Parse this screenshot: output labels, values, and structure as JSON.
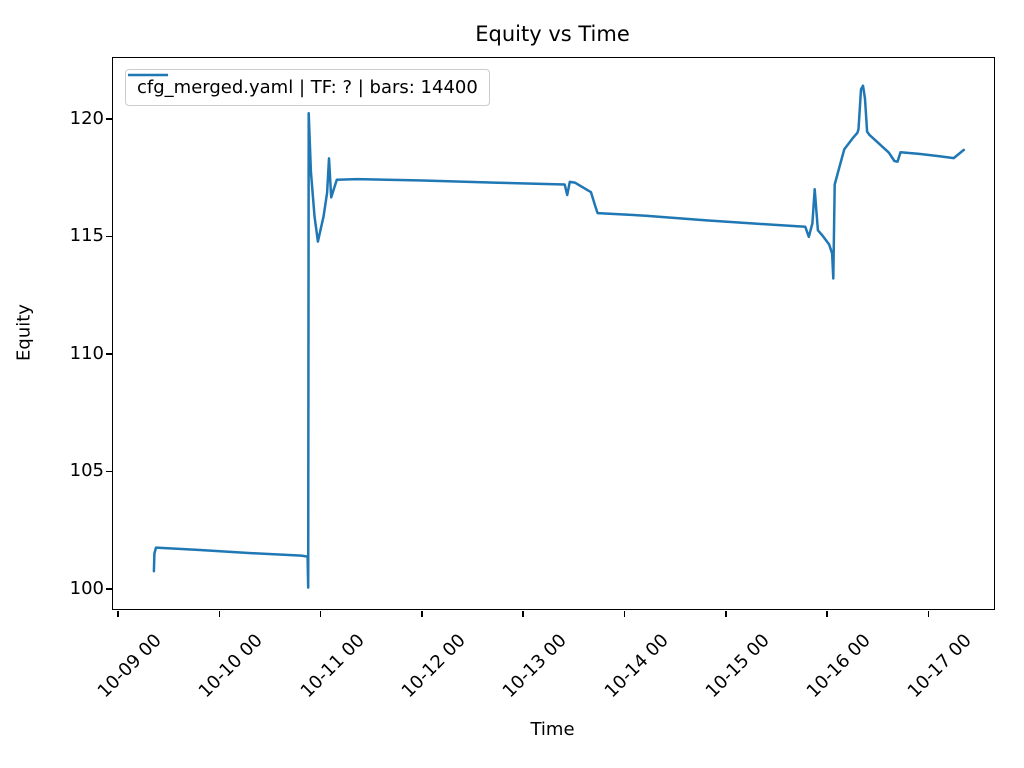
{
  "page": {
    "background": "#ffffff"
  },
  "chart_data": {
    "type": "line",
    "title": "Equity vs Time",
    "xlabel": "Time",
    "ylabel": "Equity",
    "grid": false,
    "legend": {
      "position": "upper left",
      "entries": [
        {
          "label": "cfg_merged.yaml | TF: ? | bars: 14400",
          "color": "#1f77b4"
        }
      ]
    },
    "x_axis": {
      "kind": "datetime",
      "tick_labels": [
        "10-09 00",
        "10-10 00",
        "10-11 00",
        "10-12 00",
        "10-13 00",
        "10-14 00",
        "10-15 00",
        "10-16 00",
        "10-17 00"
      ],
      "tick_positions_days": [
        0,
        1,
        2,
        3,
        4,
        5,
        6,
        7,
        8
      ],
      "lim_days": [
        -0.059,
        8.638
      ],
      "tick_rotation_deg": 45
    },
    "y_axis": {
      "tick_labels": [
        "100",
        "105",
        "110",
        "115",
        "120"
      ],
      "tick_values": [
        100,
        105,
        110,
        115,
        120
      ],
      "lim": [
        99.19,
        122.63
      ]
    },
    "series": [
      {
        "name": "cfg_merged.yaml | TF: ? | bars: 14400",
        "color": "#1f77b4",
        "line_width": 2.5,
        "points_days_equity": [
          [
            0.345,
            100.8
          ],
          [
            0.35,
            101.55
          ],
          [
            0.365,
            101.8
          ],
          [
            0.8,
            101.7
          ],
          [
            1.3,
            101.57
          ],
          [
            1.8,
            101.46
          ],
          [
            1.862,
            101.42
          ],
          [
            1.868,
            100.1
          ],
          [
            1.873,
            120.28
          ],
          [
            1.895,
            117.8
          ],
          [
            1.93,
            115.9
          ],
          [
            1.964,
            114.82
          ],
          [
            2.02,
            115.9
          ],
          [
            2.055,
            116.9
          ],
          [
            2.073,
            118.36
          ],
          [
            2.095,
            116.7
          ],
          [
            2.15,
            117.45
          ],
          [
            2.35,
            117.48
          ],
          [
            3.0,
            117.42
          ],
          [
            3.7,
            117.33
          ],
          [
            4.4,
            117.25
          ],
          [
            4.425,
            116.8
          ],
          [
            4.45,
            117.36
          ],
          [
            4.5,
            117.33
          ],
          [
            4.66,
            116.92
          ],
          [
            4.7,
            116.35
          ],
          [
            4.725,
            116.03
          ],
          [
            5.2,
            115.92
          ],
          [
            5.8,
            115.72
          ],
          [
            6.4,
            115.55
          ],
          [
            6.775,
            115.45
          ],
          [
            6.81,
            115.02
          ],
          [
            6.845,
            115.6
          ],
          [
            6.868,
            117.05
          ],
          [
            6.9,
            115.3
          ],
          [
            6.95,
            115.05
          ],
          [
            7.01,
            114.7
          ],
          [
            7.04,
            114.32
          ],
          [
            7.052,
            113.25
          ],
          [
            7.065,
            117.25
          ],
          [
            7.1,
            117.8
          ],
          [
            7.16,
            118.75
          ],
          [
            7.24,
            119.2
          ],
          [
            7.29,
            119.45
          ],
          [
            7.3,
            119.6
          ],
          [
            7.325,
            121.3
          ],
          [
            7.345,
            121.45
          ],
          [
            7.365,
            120.9
          ],
          [
            7.385,
            119.5
          ],
          [
            7.41,
            119.35
          ],
          [
            7.5,
            119.0
          ],
          [
            7.6,
            118.6
          ],
          [
            7.655,
            118.25
          ],
          [
            7.685,
            118.22
          ],
          [
            7.715,
            118.62
          ],
          [
            7.9,
            118.55
          ],
          [
            8.1,
            118.45
          ],
          [
            8.24,
            118.37
          ],
          [
            8.34,
            118.72
          ]
        ]
      }
    ]
  }
}
